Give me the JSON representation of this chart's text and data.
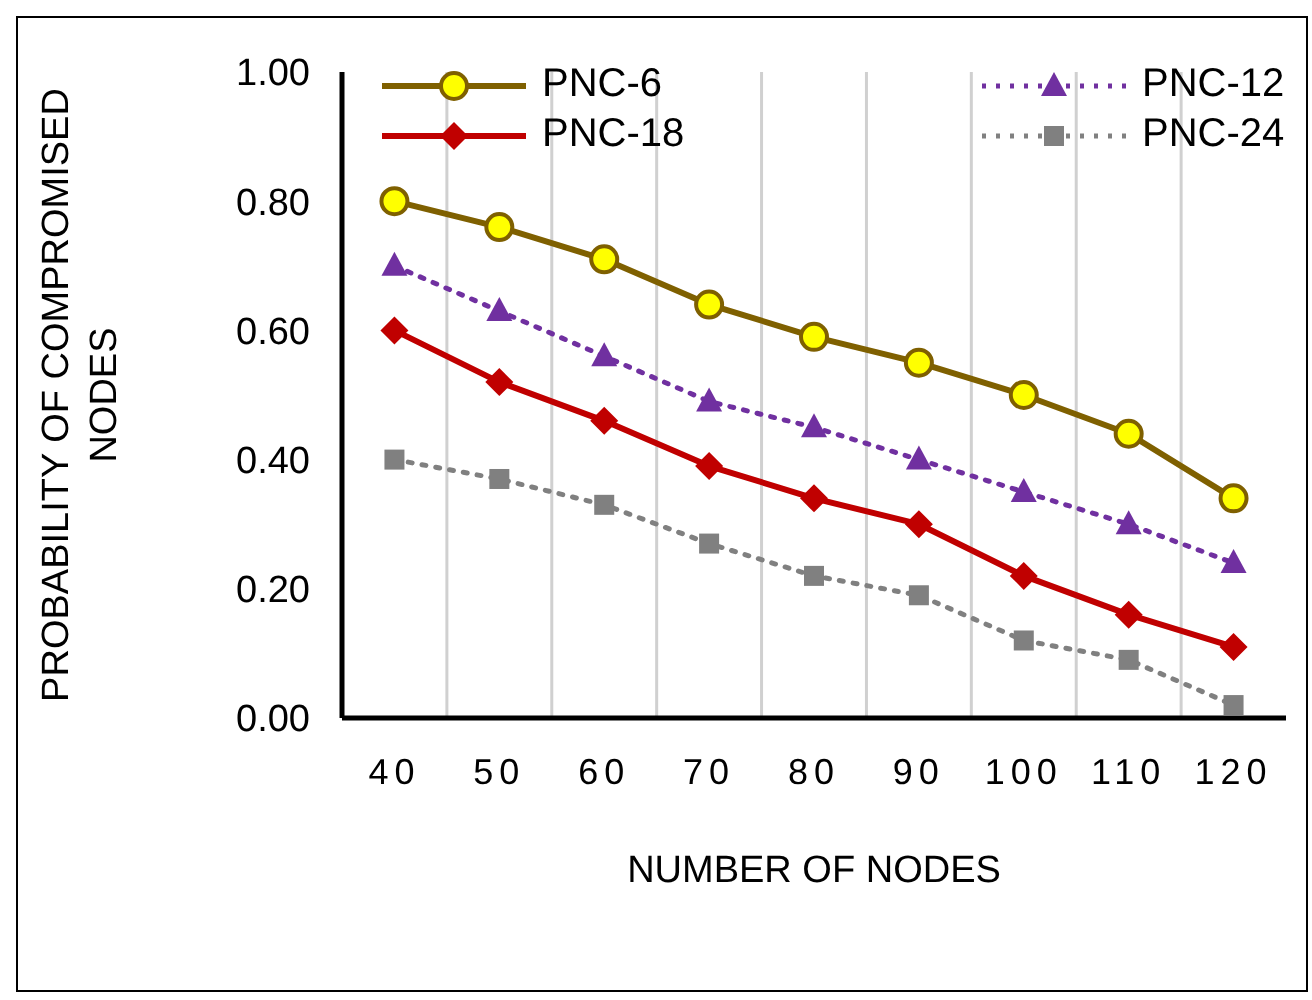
{
  "chart_data": {
    "type": "line",
    "xlabel": "NUMBER OF NODES",
    "ylabel": "PROBABILITY OF COMPROMISED NODES",
    "categories": [
      "40",
      "50",
      "60",
      "70",
      "80",
      "90",
      "100",
      "110",
      "120"
    ],
    "ylim": [
      0,
      1
    ],
    "yticks": [
      {
        "value": 0,
        "label": "0.00"
      },
      {
        "value": 0.2,
        "label": "0.20"
      },
      {
        "value": 0.4,
        "label": "0.40"
      },
      {
        "value": 0.6,
        "label": "0.60"
      },
      {
        "value": 0.8,
        "label": "0.80"
      },
      {
        "value": 1,
        "label": "1.00"
      }
    ],
    "grid": "x",
    "legend": "top",
    "series": [
      {
        "name": "PNC-6",
        "color": "#7f6000",
        "marker": "circle",
        "line_style": "solid",
        "values": [
          0.8,
          0.76,
          0.71,
          0.64,
          0.59,
          0.55,
          0.5,
          0.44,
          0.34
        ]
      },
      {
        "name": "PNC-12",
        "color": "#7030a0",
        "marker": "triangle",
        "line_style": "dotted",
        "values": [
          0.7,
          0.63,
          0.56,
          0.49,
          0.45,
          0.4,
          0.35,
          0.3,
          0.24
        ]
      },
      {
        "name": "PNC-18",
        "color": "#c00000",
        "marker": "diamond",
        "line_style": "solid",
        "values": [
          0.6,
          0.52,
          0.46,
          0.39,
          0.34,
          0.3,
          0.22,
          0.16,
          0.11
        ]
      },
      {
        "name": "PNC-24",
        "color": "#808080",
        "marker": "square",
        "line_style": "dotted",
        "values": [
          0.4,
          0.37,
          0.33,
          0.27,
          0.22,
          0.19,
          0.12,
          0.09,
          0.02
        ]
      }
    ]
  }
}
